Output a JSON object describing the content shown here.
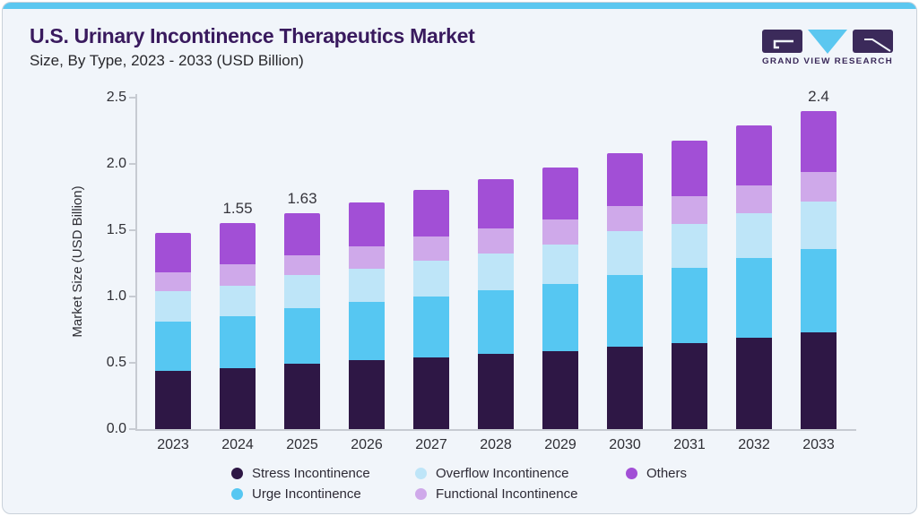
{
  "page": {
    "title": "U.S. Urinary Incontinence Therapeutics Market",
    "subtitle": "Size, By Type, 2023 - 2033 (USD Billion)"
  },
  "logo": {
    "brand": "GRAND VIEW RESEARCH",
    "primary_color": "#3B2A5A",
    "accent_color": "#5BC7F0"
  },
  "chart_data": {
    "type": "bar",
    "stacked": true,
    "title": "U.S. Urinary Incontinence Therapeutics Market Size, By Type, 2023 - 2033 (USD Billion)",
    "categories": [
      "2023",
      "2024",
      "2025",
      "2026",
      "2027",
      "2028",
      "2029",
      "2030",
      "2031",
      "2032",
      "2033"
    ],
    "series": [
      {
        "name": "Stress Incontinence",
        "color": "#2E1745",
        "values": [
          0.44,
          0.46,
          0.49,
          0.52,
          0.54,
          0.57,
          0.59,
          0.62,
          0.65,
          0.69,
          0.73
        ]
      },
      {
        "name": "Urge Incontinence",
        "color": "#56C7F2",
        "values": [
          0.37,
          0.39,
          0.42,
          0.44,
          0.46,
          0.48,
          0.51,
          0.54,
          0.57,
          0.6,
          0.63
        ]
      },
      {
        "name": "Overflow Incontinence",
        "color": "#BEE5F8",
        "values": [
          0.23,
          0.23,
          0.25,
          0.25,
          0.27,
          0.28,
          0.3,
          0.33,
          0.33,
          0.34,
          0.36
        ]
      },
      {
        "name": "Functional Incontinence",
        "color": "#CFA9EA",
        "values": [
          0.14,
          0.16,
          0.15,
          0.17,
          0.18,
          0.19,
          0.19,
          0.19,
          0.21,
          0.21,
          0.22
        ]
      },
      {
        "name": "Others",
        "color": "#A24FD6",
        "values": [
          0.3,
          0.31,
          0.32,
          0.33,
          0.35,
          0.37,
          0.39,
          0.4,
          0.42,
          0.45,
          0.46
        ]
      }
    ],
    "totals": [
      1.48,
      1.55,
      1.63,
      1.71,
      1.8,
      1.89,
      1.98,
      2.08,
      2.18,
      2.29,
      2.4
    ],
    "bar_labels": [
      "",
      "1.55",
      "1.63",
      "",
      "",
      "",
      "",
      "",
      "",
      "",
      "2.4"
    ],
    "ylabel": "Market Size (USD Billion)",
    "ylim": [
      0,
      2.5
    ],
    "yticks": [
      "0.0",
      "0.5",
      "1.0",
      "1.5",
      "2.0",
      "2.5"
    ],
    "grid": false,
    "legend_position": "bottom",
    "legend_columns": [
      [
        "Stress Incontinence",
        "Urge Incontinence"
      ],
      [
        "Overflow Incontinence",
        "Functional Incontinence"
      ],
      [
        "Others"
      ]
    ]
  }
}
